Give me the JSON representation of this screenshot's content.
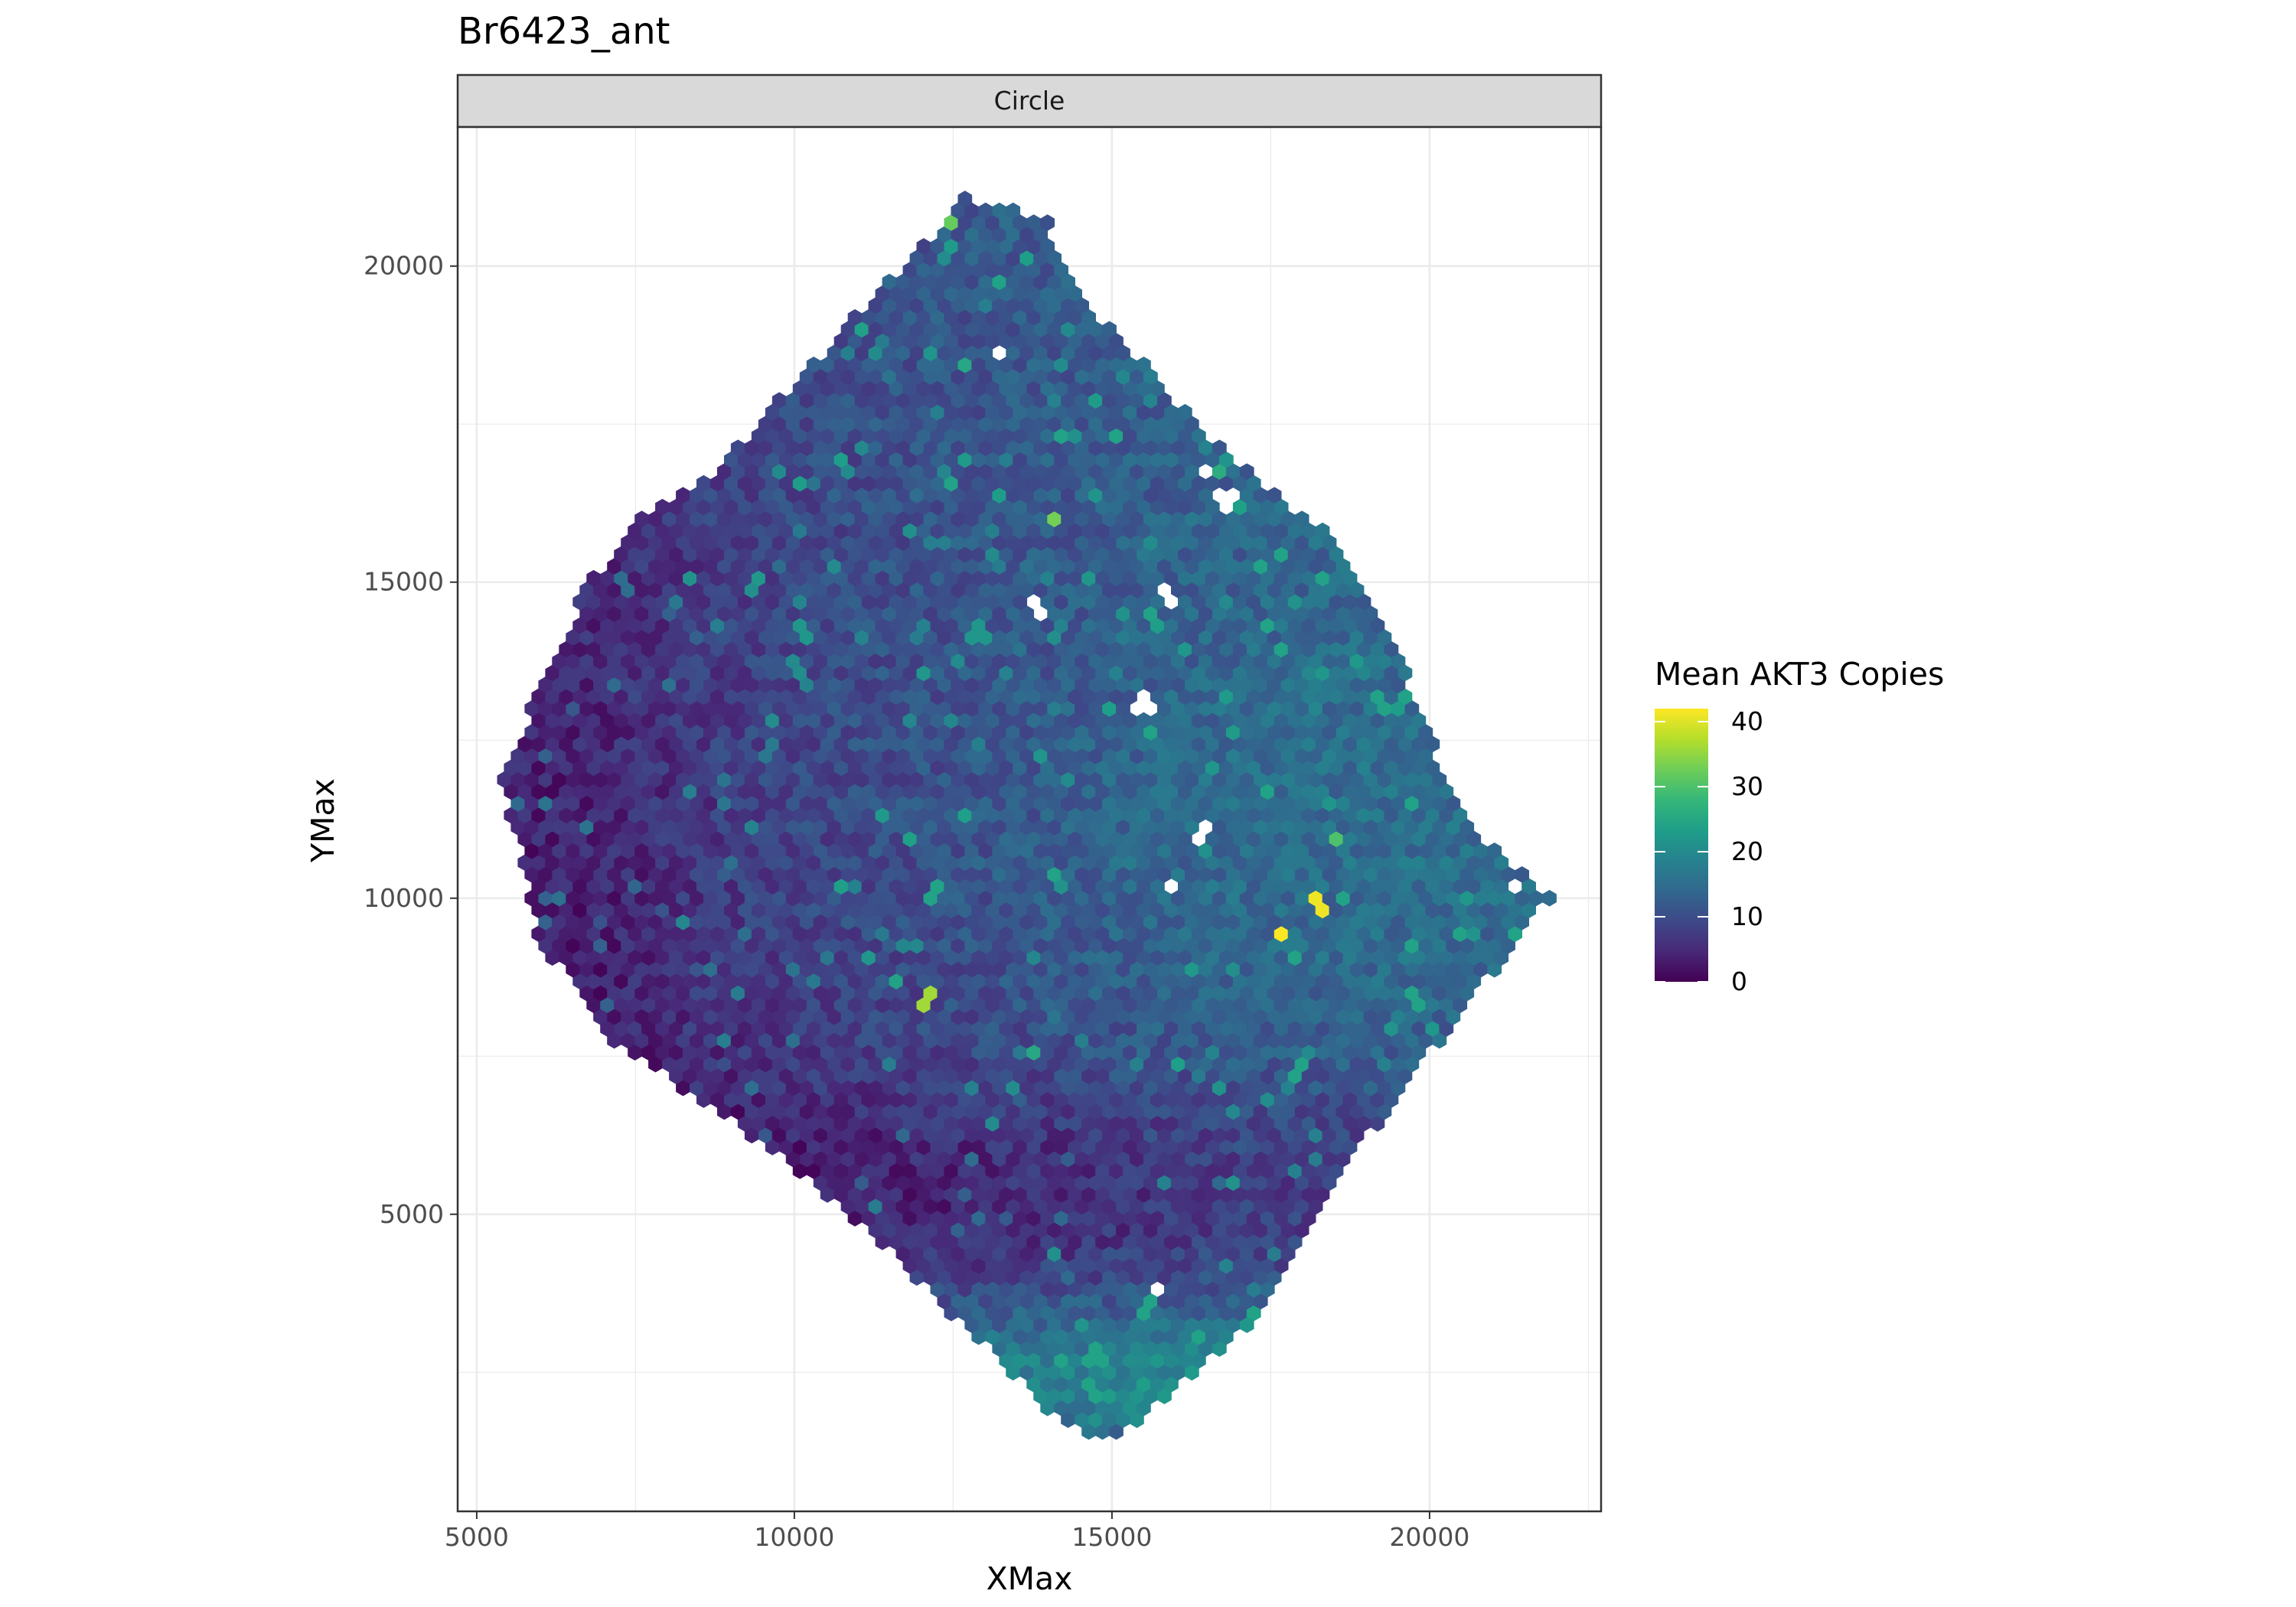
{
  "chart_data": {
    "type": "heatmap",
    "geom": "hexbin",
    "title": "Br6423_ant",
    "facet": "Circle",
    "xlabel": "XMax",
    "ylabel": "YMax",
    "xlim": [
      4700,
      22700
    ],
    "ylim": [
      300,
      22200
    ],
    "x_ticks": [
      5000,
      10000,
      15000,
      20000
    ],
    "y_ticks": [
      5000,
      10000,
      15000,
      20000
    ],
    "grid": true,
    "legend": {
      "title": "Mean AKT3 Copies",
      "position": "right",
      "range": [
        0,
        42
      ],
      "ticks": [
        0,
        10,
        20,
        30,
        40
      ],
      "colorscale": [
        "#440154",
        "#482878",
        "#3e4989",
        "#31688e",
        "#26828e",
        "#1f9e89",
        "#35b779",
        "#6ece58",
        "#b5de2b",
        "#fde725"
      ]
    },
    "colors": {
      "panel_background": "#ffffff",
      "grid": "#ebebeb",
      "strip_fill": "#d9d9d9",
      "strip_border": "#333333",
      "panel_border": "#333333"
    },
    "tissue_outline": [
      [
        5400,
        12000
      ],
      [
        6700,
        14900
      ],
      [
        7500,
        16000
      ],
      [
        8600,
        16600
      ],
      [
        11400,
        19700
      ],
      [
        12100,
        20400
      ],
      [
        12500,
        21100
      ],
      [
        13500,
        20900
      ],
      [
        14000,
        20700
      ],
      [
        14400,
        19700
      ],
      [
        16600,
        17200
      ],
      [
        18600,
        15600
      ],
      [
        19800,
        13200
      ],
      [
        20500,
        11300
      ],
      [
        21900,
        10000
      ],
      [
        19000,
        6200
      ],
      [
        17200,
        3300
      ],
      [
        15000,
        1400
      ],
      [
        14300,
        1600
      ],
      [
        13000,
        2900
      ],
      [
        11200,
        4700
      ],
      [
        9000,
        6500
      ],
      [
        7000,
        7800
      ],
      [
        5900,
        9500
      ],
      [
        5600,
        11000
      ]
    ],
    "hotspots": [
      {
        "x": 17700,
        "y": 9400,
        "value": 42
      },
      {
        "x": 18300,
        "y": 9900,
        "value": 41
      },
      {
        "x": 12100,
        "y": 8400,
        "value": 36
      },
      {
        "x": 14100,
        "y": 16000,
        "value": 33
      },
      {
        "x": 12400,
        "y": 20700,
        "value": 32
      },
      {
        "x": 20000,
        "y": 7000,
        "value": 31
      },
      {
        "x": 18500,
        "y": 11000,
        "value": 30
      },
      {
        "x": 16600,
        "y": 16800,
        "value": 26
      },
      {
        "x": 12700,
        "y": 18400,
        "value": 25
      },
      {
        "x": 13800,
        "y": 7600,
        "value": 25
      },
      {
        "x": 19800,
        "y": 8400,
        "value": 24
      },
      {
        "x": 17900,
        "y": 7300,
        "value": 24
      },
      {
        "x": 15700,
        "y": 12600,
        "value": 24
      },
      {
        "x": 12200,
        "y": 10100,
        "value": 24
      },
      {
        "x": 10100,
        "y": 14200,
        "value": 22
      },
      {
        "x": 12900,
        "y": 14200,
        "value": 22
      },
      {
        "x": 16200,
        "y": 14000,
        "value": 22
      },
      {
        "x": 20600,
        "y": 10000,
        "value": 22
      },
      {
        "x": 11200,
        "y": 9000,
        "value": 22
      },
      {
        "x": 17100,
        "y": 3300,
        "value": 22
      },
      {
        "x": 14800,
        "y": 1700,
        "value": 21
      },
      {
        "x": 15400,
        "y": 1800,
        "value": 21
      }
    ],
    "empty_bins": [
      {
        "x": 13200,
        "y": 18600
      },
      {
        "x": 15900,
        "y": 14800
      },
      {
        "x": 13800,
        "y": 14600
      },
      {
        "x": 15500,
        "y": 13100
      },
      {
        "x": 16400,
        "y": 11000
      },
      {
        "x": 15900,
        "y": 10200
      },
      {
        "x": 21300,
        "y": 10200
      },
      {
        "x": 15800,
        "y": 3800
      },
      {
        "x": 16800,
        "y": 16300
      },
      {
        "x": 16500,
        "y": 16700
      }
    ]
  }
}
